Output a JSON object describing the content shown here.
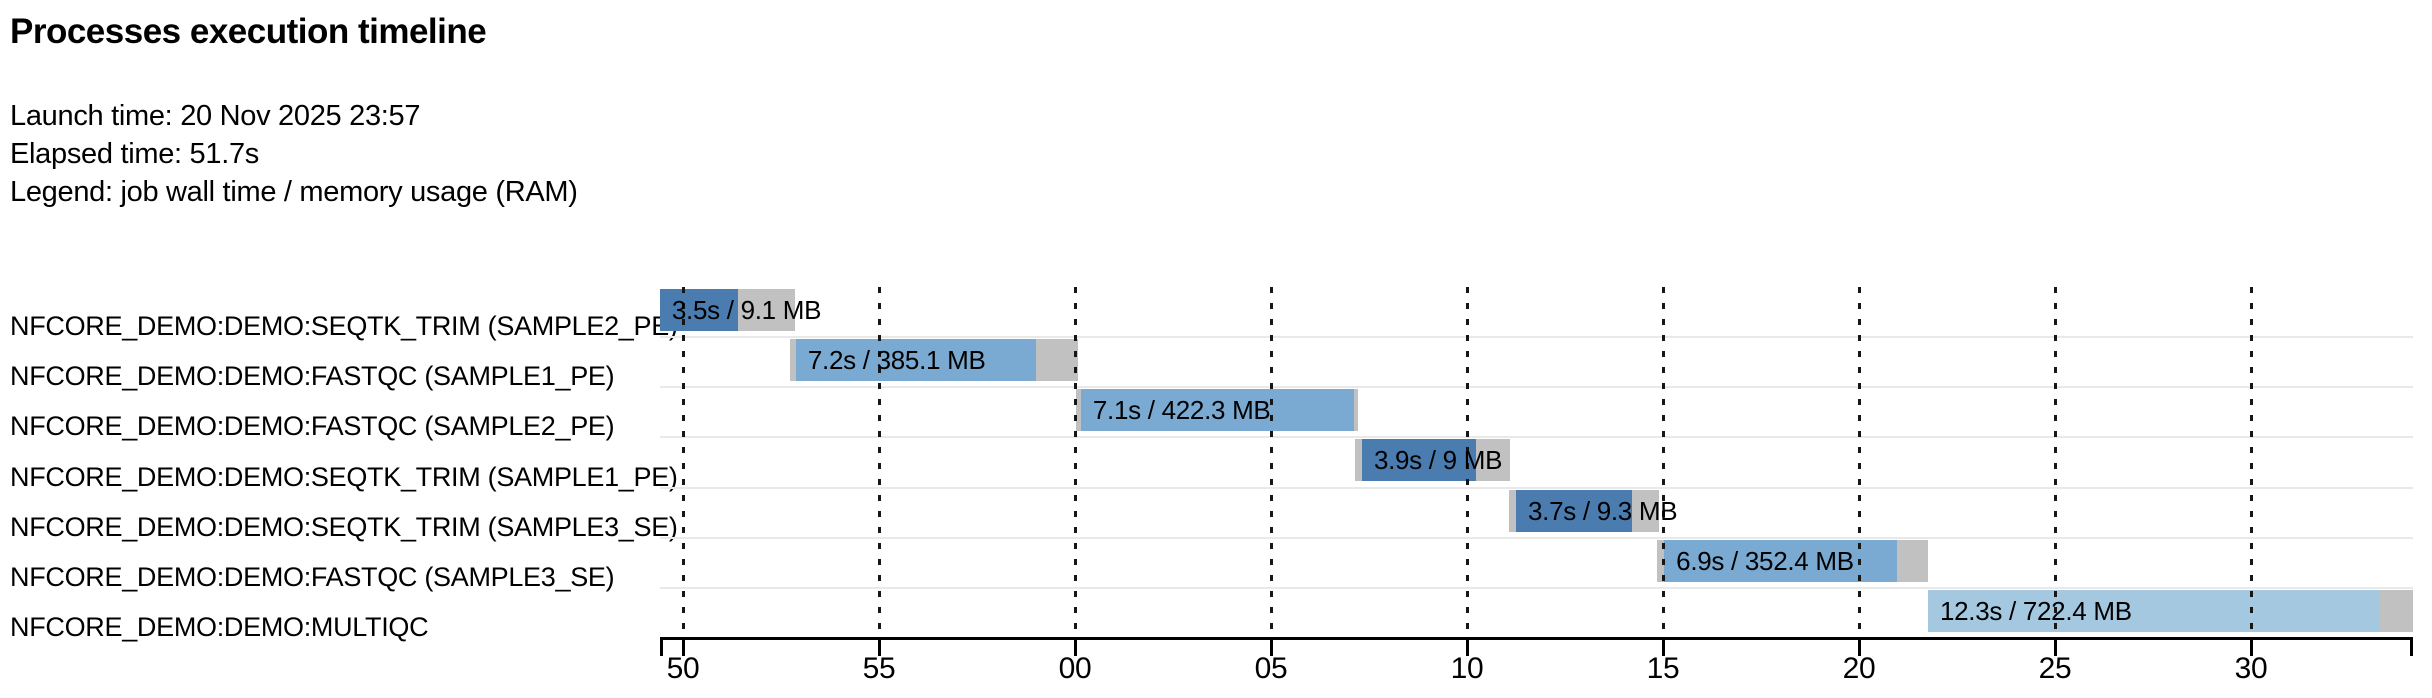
{
  "header": {
    "title": "Processes execution timeline",
    "launch_line": "Launch time: 20 Nov 2025 23:57",
    "elapsed_line": "Elapsed time: 51.7s",
    "legend_line": "Legend: job wall time / memory usage (RAM)"
  },
  "chart_data": {
    "type": "gantt",
    "title": "Processes execution timeline",
    "legend": "job wall time / memory usage (RAM)",
    "x_axis": {
      "unit": "seconds",
      "domain_seconds": [
        49.41,
        94.13
      ],
      "tick_seconds": [
        50,
        55,
        60,
        65,
        70,
        75,
        80,
        85,
        90
      ],
      "tick_labels": [
        "50",
        "55",
        "00",
        "05",
        "10",
        "15",
        "20",
        "25",
        "30"
      ]
    },
    "colors": {
      "SEQTK_TRIM": "#4a7cb0",
      "FASTQC": "#7aaad2",
      "MULTIQC": "#a5c8e1",
      "overhead_gray": "#c1c1c1",
      "gridline": "#161616",
      "row_separator": "#e9e9e9"
    },
    "rows": [
      {
        "process": "NFCORE_DEMO:DEMO:SEQTK_TRIM (SAMPLE2_PE)",
        "label": "3.5s / 9.1 MB",
        "start_s": 49.41,
        "run_start_s": 49.41,
        "run_end_s": 51.4,
        "end_s": 52.86,
        "wall_time": "3.5s",
        "memory": "9.1 MB",
        "color_key": "SEQTK_TRIM"
      },
      {
        "process": "NFCORE_DEMO:DEMO:FASTQC (SAMPLE1_PE)",
        "label": "7.2s / 385.1 MB",
        "start_s": 52.73,
        "run_start_s": 52.88,
        "run_end_s": 59.01,
        "end_s": 60.08,
        "wall_time": "7.2s",
        "memory": "385.1 MB",
        "color_key": "FASTQC"
      },
      {
        "process": "NFCORE_DEMO:DEMO:FASTQC (SAMPLE2_PE)",
        "label": "7.1s / 422.3 MB",
        "start_s": 60.03,
        "run_start_s": 60.15,
        "run_end_s": 67.12,
        "end_s": 67.22,
        "wall_time": "7.1s",
        "memory": "422.3 MB",
        "color_key": "FASTQC"
      },
      {
        "process": "NFCORE_DEMO:DEMO:SEQTK_TRIM (SAMPLE1_PE)",
        "label": "3.9s / 9 MB",
        "start_s": 67.14,
        "run_start_s": 67.32,
        "run_end_s": 70.23,
        "end_s": 71.1,
        "wall_time": "3.9s",
        "memory": "9 MB",
        "color_key": "SEQTK_TRIM"
      },
      {
        "process": "NFCORE_DEMO:DEMO:SEQTK_TRIM (SAMPLE3_SE)",
        "label": "3.7s / 9.3 MB",
        "start_s": 71.07,
        "run_start_s": 71.25,
        "run_end_s": 74.21,
        "end_s": 74.9,
        "wall_time": "3.7s",
        "memory": "9.3 MB",
        "color_key": "SEQTK_TRIM"
      },
      {
        "process": "NFCORE_DEMO:DEMO:FASTQC (SAMPLE3_SE)",
        "label": "6.9s / 352.4 MB",
        "start_s": 74.85,
        "run_start_s": 75.03,
        "run_end_s": 80.97,
        "end_s": 81.76,
        "wall_time": "6.9s",
        "memory": "352.4 MB",
        "color_key": "FASTQC"
      },
      {
        "process": "NFCORE_DEMO:DEMO:MULTIQC",
        "label": "12.3s / 722.4 MB",
        "start_s": 81.76,
        "run_start_s": 81.76,
        "run_end_s": 93.29,
        "end_s": 94.13,
        "wall_time": "12.3s",
        "memory": "722.4 MB",
        "color_key": "MULTIQC"
      }
    ]
  }
}
